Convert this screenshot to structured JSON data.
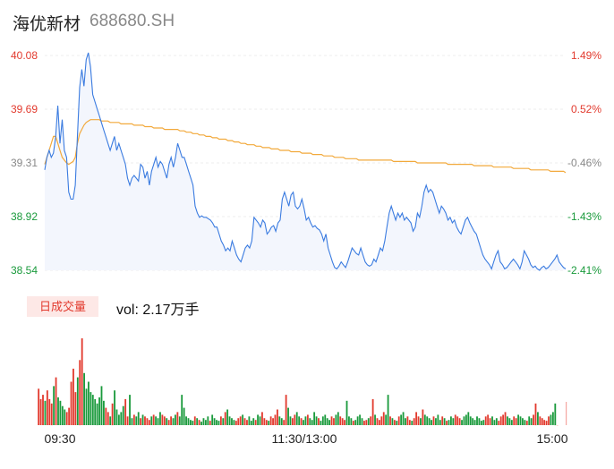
{
  "header": {
    "name": "海优新材",
    "code": "688680.SH"
  },
  "volume_panel": {
    "button_label": "日成交量",
    "vol_text": "vol: 2.17万手"
  },
  "colors": {
    "price_line": "#3a7be0",
    "avg_line": "#f2a93b",
    "up": "#e23a2e",
    "down": "#1a9a3c",
    "area_fill": "#f3f6fd"
  },
  "chart_data": [
    {
      "type": "line",
      "title": "",
      "y_ticks_left": [
        "40.08",
        "39.69",
        "39.31",
        "38.92",
        "38.54"
      ],
      "y_ticks_right": [
        "1.49%",
        "0.52%",
        "-0.46%",
        "-1.43%",
        "-2.41%"
      ],
      "x_ticks": [
        "09:30",
        "11:30/13:00",
        "15:00"
      ],
      "ylim": [
        38.54,
        40.08
      ],
      "series": [
        {
          "name": "price",
          "x_range": [
            0,
            240
          ],
          "y": [
            39.26,
            39.35,
            39.4,
            39.35,
            39.38,
            39.5,
            39.72,
            39.45,
            39.62,
            39.4,
            39.35,
            39.1,
            39.05,
            39.05,
            39.15,
            39.5,
            39.85,
            39.98,
            39.86,
            40.05,
            40.1,
            40.0,
            39.8,
            39.75,
            39.7,
            39.65,
            39.6,
            39.55,
            39.5,
            39.45,
            39.4,
            39.45,
            39.5,
            39.4,
            39.45,
            39.4,
            39.35,
            39.3,
            39.2,
            39.15,
            39.2,
            39.22,
            39.2,
            39.18,
            39.3,
            39.28,
            39.2,
            39.25,
            39.15,
            39.25,
            39.3,
            39.35,
            39.28,
            39.32,
            39.3,
            39.25,
            39.2,
            39.3,
            39.35,
            39.28,
            39.35,
            39.45,
            39.4,
            39.35,
            39.35,
            39.3,
            39.25,
            39.2,
            39.15,
            39.0,
            38.95,
            38.92,
            38.93,
            38.92,
            38.92,
            38.91,
            38.9,
            38.88,
            38.85,
            38.85,
            38.8,
            38.75,
            38.72,
            38.68,
            38.7,
            38.68,
            38.75,
            38.7,
            38.65,
            38.62,
            38.6,
            38.65,
            38.7,
            38.72,
            38.7,
            38.75,
            38.92,
            38.9,
            38.88,
            38.85,
            38.9,
            38.88,
            38.8,
            38.82,
            38.85,
            38.86,
            38.82,
            38.88,
            38.9,
            39.05,
            39.1,
            39.05,
            39.0,
            39.08,
            39.1,
            39.0,
            38.98,
            39.0,
            39.05,
            38.98,
            38.9,
            38.92,
            38.88,
            38.85,
            38.86,
            38.84,
            38.83,
            38.8,
            38.75,
            38.8,
            38.7,
            38.65,
            38.6,
            38.56,
            38.55,
            38.57,
            38.6,
            38.58,
            38.56,
            38.6,
            38.65,
            38.7,
            38.68,
            38.66,
            38.65,
            38.7,
            38.65,
            38.6,
            38.58,
            38.57,
            38.58,
            38.62,
            38.6,
            38.65,
            38.7,
            38.68,
            38.75,
            38.85,
            38.95,
            39.0,
            38.95,
            38.9,
            38.95,
            38.92,
            38.95,
            38.9,
            38.92,
            38.9,
            38.88,
            38.82,
            38.85,
            38.95,
            38.92,
            39.0,
            39.1,
            39.15,
            39.1,
            39.12,
            39.1,
            39.05,
            39.0,
            38.95,
            39.0,
            38.98,
            38.95,
            38.9,
            38.92,
            38.88,
            38.9,
            38.85,
            38.82,
            38.8,
            38.85,
            38.9,
            38.92,
            38.88,
            38.85,
            38.82,
            38.8,
            38.75,
            38.7,
            38.65,
            38.62,
            38.6,
            38.58,
            38.55,
            38.6,
            38.65,
            38.68,
            38.6,
            38.58,
            38.55,
            38.56,
            38.58,
            38.6,
            38.62,
            38.6,
            38.58,
            38.55,
            38.6,
            38.68,
            38.65,
            38.62,
            38.58,
            38.56,
            38.57,
            38.55,
            38.54,
            38.56,
            38.57,
            38.55,
            38.56,
            38.58,
            38.6,
            38.62,
            38.65,
            38.6,
            38.58,
            38.56,
            38.55
          ]
        },
        {
          "name": "average",
          "x_range": [
            0,
            240
          ],
          "y": [
            39.3,
            39.35,
            39.4,
            39.45,
            39.5,
            39.5,
            39.45,
            39.4,
            39.35,
            39.33,
            39.31,
            39.3,
            39.31,
            39.32,
            39.35,
            39.45,
            39.52,
            39.55,
            39.58,
            39.6,
            39.61,
            39.62,
            39.62,
            39.62,
            39.62,
            39.62,
            39.61,
            39.61,
            39.61,
            39.61,
            39.6,
            39.6,
            39.6,
            39.6,
            39.6,
            39.59,
            39.59,
            39.59,
            39.59,
            39.59,
            39.59,
            39.58,
            39.58,
            39.58,
            39.58,
            39.58,
            39.57,
            39.57,
            39.57,
            39.57,
            39.56,
            39.56,
            39.56,
            39.56,
            39.56,
            39.55,
            39.55,
            39.55,
            39.55,
            39.55,
            39.55,
            39.55,
            39.54,
            39.54,
            39.54,
            39.53,
            39.53,
            39.53,
            39.52,
            39.52,
            39.52,
            39.51,
            39.51,
            39.51,
            39.5,
            39.5,
            39.5,
            39.49,
            39.49,
            39.49,
            39.48,
            39.48,
            39.48,
            39.48,
            39.47,
            39.47,
            39.47,
            39.46,
            39.46,
            39.46,
            39.45,
            39.45,
            39.45,
            39.44,
            39.44,
            39.44,
            39.44,
            39.43,
            39.43,
            39.43,
            39.42,
            39.42,
            39.42,
            39.42,
            39.41,
            39.41,
            39.41,
            39.41,
            39.4,
            39.4,
            39.4,
            39.4,
            39.4,
            39.39,
            39.39,
            39.39,
            39.39,
            39.39,
            39.38,
            39.38,
            39.38,
            39.38,
            39.38,
            39.37,
            39.37,
            39.37,
            39.37,
            39.37,
            39.36,
            39.36,
            39.36,
            39.36,
            39.36,
            39.35,
            39.35,
            39.35,
            39.35,
            39.35,
            39.34,
            39.34,
            39.34,
            39.34,
            39.34,
            39.34,
            39.33,
            39.33,
            39.33,
            39.33,
            39.33,
            39.33,
            39.33,
            39.33,
            39.33,
            39.33,
            39.33,
            39.33,
            39.33,
            39.33,
            39.33,
            39.33,
            39.32,
            39.32,
            39.32,
            39.32,
            39.32,
            39.32,
            39.32,
            39.32,
            39.32,
            39.32,
            39.32,
            39.31,
            39.31,
            39.31,
            39.31,
            39.31,
            39.31,
            39.31,
            39.31,
            39.31,
            39.31,
            39.31,
            39.31,
            39.31,
            39.31,
            39.3,
            39.3,
            39.3,
            39.3,
            39.3,
            39.3,
            39.3,
            39.3,
            39.3,
            39.3,
            39.3,
            39.3,
            39.29,
            39.29,
            39.29,
            39.29,
            39.29,
            39.29,
            39.29,
            39.29,
            39.29,
            39.28,
            39.28,
            39.28,
            39.28,
            39.28,
            39.28,
            39.28,
            39.28,
            39.28,
            39.27,
            39.27,
            39.27,
            39.27,
            39.27,
            39.27,
            39.27,
            39.27,
            39.26,
            39.26,
            39.26,
            39.26,
            39.26,
            39.26,
            39.26,
            39.26,
            39.26,
            39.25,
            39.25,
            39.25,
            39.25,
            39.25,
            39.25,
            39.25,
            39.24
          ]
        }
      ]
    },
    {
      "type": "bar",
      "title": "日成交量",
      "x_ticks": [
        "09:30",
        "11:30/13:00",
        "15:00"
      ],
      "series": [
        {
          "name": "volume",
          "values": [
            0.42,
            0.3,
            0.35,
            0.28,
            0.4,
            0.3,
            0.25,
            0.45,
            0.55,
            0.32,
            0.28,
            0.22,
            0.18,
            0.15,
            0.2,
            0.5,
            0.65,
            0.38,
            0.55,
            0.75,
            1.0,
            0.6,
            0.42,
            0.5,
            0.38,
            0.35,
            0.3,
            0.25,
            0.32,
            0.45,
            0.28,
            0.2,
            0.15,
            0.1,
            0.25,
            0.4,
            0.18,
            0.12,
            0.15,
            0.22,
            0.3,
            0.1,
            0.35,
            0.08,
            0.12,
            0.1,
            0.15,
            0.08,
            0.12,
            0.1,
            0.08,
            0.06,
            0.1,
            0.12,
            0.1,
            0.08,
            0.15,
            0.12,
            0.1,
            0.08,
            0.06,
            0.1,
            0.08,
            0.12,
            0.15,
            0.1,
            0.35,
            0.2,
            0.1,
            0.08,
            0.06,
            0.05,
            0.1,
            0.08,
            0.06,
            0.04,
            0.08,
            0.06,
            0.1,
            0.05,
            0.12,
            0.08,
            0.06,
            0.05,
            0.1,
            0.08,
            0.15,
            0.18,
            0.1,
            0.08,
            0.06,
            0.05,
            0.08,
            0.1,
            0.12,
            0.08,
            0.06,
            0.1,
            0.05,
            0.08,
            0.06,
            0.12,
            0.1,
            0.15,
            0.08,
            0.06,
            0.05,
            0.1,
            0.08,
            0.12,
            0.18,
            0.1,
            0.08,
            0.06,
            0.35,
            0.2,
            0.1,
            0.08,
            0.12,
            0.15,
            0.1,
            0.08,
            0.06,
            0.1,
            0.12,
            0.08,
            0.06,
            0.15,
            0.1,
            0.08,
            0.05,
            0.1,
            0.12,
            0.08,
            0.06,
            0.1,
            0.08,
            0.12,
            0.15,
            0.1,
            0.08,
            0.06,
            0.28,
            0.1,
            0.08,
            0.05,
            0.06,
            0.1,
            0.12,
            0.08,
            0.05,
            0.06,
            0.08,
            0.1,
            0.3,
            0.12,
            0.08,
            0.06,
            0.1,
            0.15,
            0.12,
            0.35,
            0.1,
            0.08,
            0.06,
            0.05,
            0.1,
            0.12,
            0.15,
            0.08,
            0.1,
            0.06,
            0.05,
            0.08,
            0.15,
            0.1,
            0.08,
            0.18,
            0.12,
            0.1,
            0.08,
            0.06,
            0.1,
            0.08,
            0.12,
            0.06,
            0.1,
            0.08,
            0.05,
            0.06,
            0.1,
            0.08,
            0.12,
            0.1,
            0.08,
            0.06,
            0.1,
            0.12,
            0.15,
            0.1,
            0.08,
            0.06,
            0.1,
            0.08,
            0.05,
            0.06,
            0.1,
            0.12,
            0.08,
            0.1,
            0.06,
            0.08,
            0.05,
            0.1,
            0.12,
            0.15,
            0.1,
            0.08,
            0.06,
            0.1,
            0.08,
            0.12,
            0.1,
            0.08,
            0.06,
            0.05,
            0.1,
            0.08,
            0.12,
            0.25,
            0.15,
            0.1,
            0.08,
            0.06,
            0.05,
            0.1,
            0.12,
            0.15,
            0.25,
            0.0
          ]
        }
      ]
    }
  ]
}
